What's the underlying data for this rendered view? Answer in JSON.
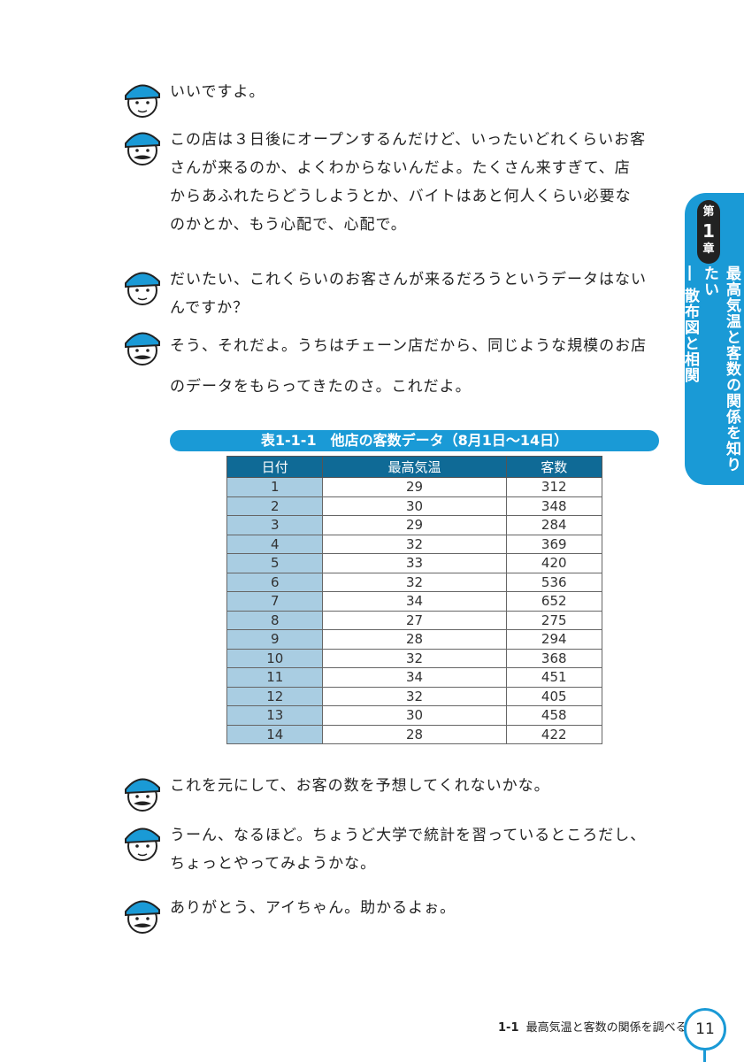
{
  "dialogue": [
    {
      "speaker": "ai",
      "lines": [
        "いいですよ。"
      ]
    },
    {
      "speaker": "manager",
      "lines": [
        "この店は３日後にオープンするんだけど、いったいどれくらいお客",
        "さんが来るのか、よくわからないんだよ。たくさん来すぎて、店",
        "からあふれたらどうしようとか、バイトはあと何人くらい必要な",
        "のかとか、もう心配で、心配で。"
      ]
    },
    {
      "speaker": "ai",
      "lines": [
        "だいたい、これくらいのお客さんが来るだろうというデータはない",
        "んですか？"
      ]
    },
    {
      "speaker": "manager",
      "lines": [
        "そう、それだよ。うちはチェーン店だから、同じような規模のお店",
        "のデータをもらってきたのさ。これだよ。"
      ]
    },
    {
      "speaker": "manager",
      "lines": [
        "これを元にして、お客の数を予想してくれないかな。"
      ]
    },
    {
      "speaker": "ai",
      "lines": [
        "うーん、なるほど。ちょうど大学で統計を習っているところだし、",
        "ちょっとやってみようかな。"
      ]
    },
    {
      "speaker": "manager",
      "lines": [
        "ありがとう、アイちゃん。助かるよぉ。"
      ]
    }
  ],
  "table": {
    "caption": "表1-1-1　他店の客数データ（8月1日～14日）",
    "headers": [
      "日付",
      "最高気温",
      "客数"
    ],
    "rows": [
      [
        "1",
        "29",
        "312"
      ],
      [
        "2",
        "30",
        "348"
      ],
      [
        "3",
        "29",
        "284"
      ],
      [
        "4",
        "32",
        "369"
      ],
      [
        "5",
        "33",
        "420"
      ],
      [
        "6",
        "32",
        "536"
      ],
      [
        "7",
        "34",
        "652"
      ],
      [
        "8",
        "27",
        "275"
      ],
      [
        "9",
        "28",
        "294"
      ],
      [
        "10",
        "32",
        "368"
      ],
      [
        "11",
        "34",
        "451"
      ],
      [
        "12",
        "32",
        "405"
      ],
      [
        "13",
        "30",
        "458"
      ],
      [
        "14",
        "28",
        "422"
      ]
    ]
  },
  "chapter_tab": {
    "dai": "第",
    "number": "1",
    "sho": "章",
    "title": "最高気温と客数の関係を知りたい",
    "subtitle": "― 散布図と相関"
  },
  "footer": {
    "section": "1-1",
    "section_title": "最高気温と客数の関係を調べる",
    "page_number": "11"
  },
  "colors": {
    "accent": "#1a9ad6",
    "header": "#0f6a96",
    "date_cell": "#a9cde2"
  }
}
